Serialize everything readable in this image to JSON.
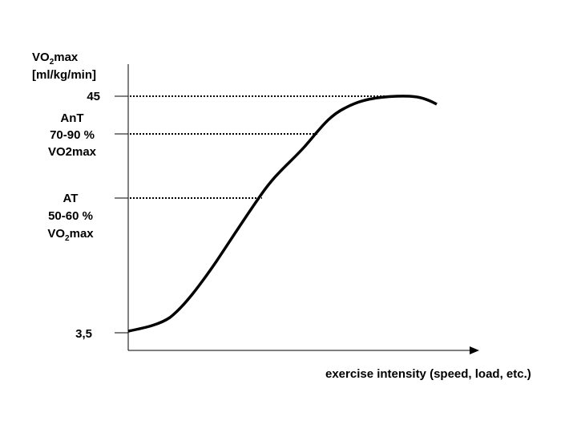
{
  "y_axis": {
    "label": {
      "prefix": "VO",
      "subscript": "2",
      "suffix": "max"
    },
    "unit": "[ml/kg/min]"
  },
  "levels": [
    {
      "lines": [
        {
          "text": "45"
        }
      ]
    },
    {
      "lines": [
        {
          "text": "AnT"
        },
        {
          "text": "70-90 %"
        },
        {
          "text": "VO2max"
        }
      ]
    },
    {
      "lines": [
        {
          "text": "AT"
        },
        {
          "text": "50-60 %"
        },
        {
          "prefix": "VO",
          "subscript": "2",
          "suffix": "max"
        }
      ]
    },
    {
      "lines": [
        {
          "text": "3,5"
        }
      ]
    }
  ],
  "x_axis": {
    "label": "exercise intensity (speed, load, etc.)"
  }
}
